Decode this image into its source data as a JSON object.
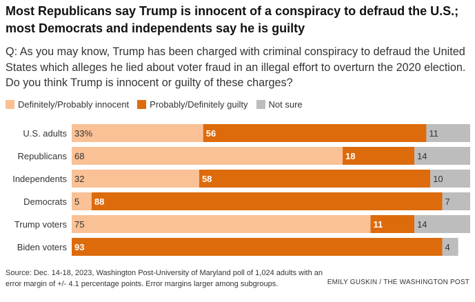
{
  "title": "Most Republicans say Trump is innocent of a conspiracy to defraud the U.S.; most Democrats and independents say he is guilty",
  "question": "Q: As you may know, Trump has been charged with criminal conspiracy to defraud the United States which alleges he lied about voter fraud in an illegal effort to overturn the 2020 election. Do you think Trump is innocent or guilty of these charges?",
  "source": "Source: Dec. 14-18, 2023, Washington Post-University of Maryland poll of 1,024 adults with an error margin of +/- 4.1 percentage points. Error margins larger among subgroups.",
  "credit": "EMILY GUSKIN / THE WASHINGTON POST",
  "colors": {
    "innocent": "#f9c195",
    "guilty": "#dd6b0c",
    "not_sure": "#bdbdbd"
  },
  "chart_data": {
    "type": "bar",
    "orientation": "horizontal",
    "stacked": true,
    "categories": [
      "U.S. adults",
      "Republicans",
      "Independents",
      "Democrats",
      "Trump voters",
      "Biden voters"
    ],
    "series": [
      {
        "name": "Definitely/Probably innocent",
        "values": [
          33,
          68,
          32,
          5,
          75,
          0
        ],
        "labels": [
          "33%",
          "68",
          "32",
          "5",
          "75",
          ""
        ]
      },
      {
        "name": "Probably/Definitely guilty",
        "values": [
          56,
          18,
          58,
          88,
          11,
          93
        ],
        "labels": [
          "56",
          "18",
          "58",
          "88",
          "11",
          "93"
        ]
      },
      {
        "name": "Not sure",
        "values": [
          11,
          14,
          10,
          7,
          14,
          4
        ],
        "labels": [
          "11",
          "14",
          "10",
          "7",
          "14",
          "4"
        ]
      }
    ],
    "xlim": [
      0,
      100
    ],
    "legend_position": "top-left"
  }
}
